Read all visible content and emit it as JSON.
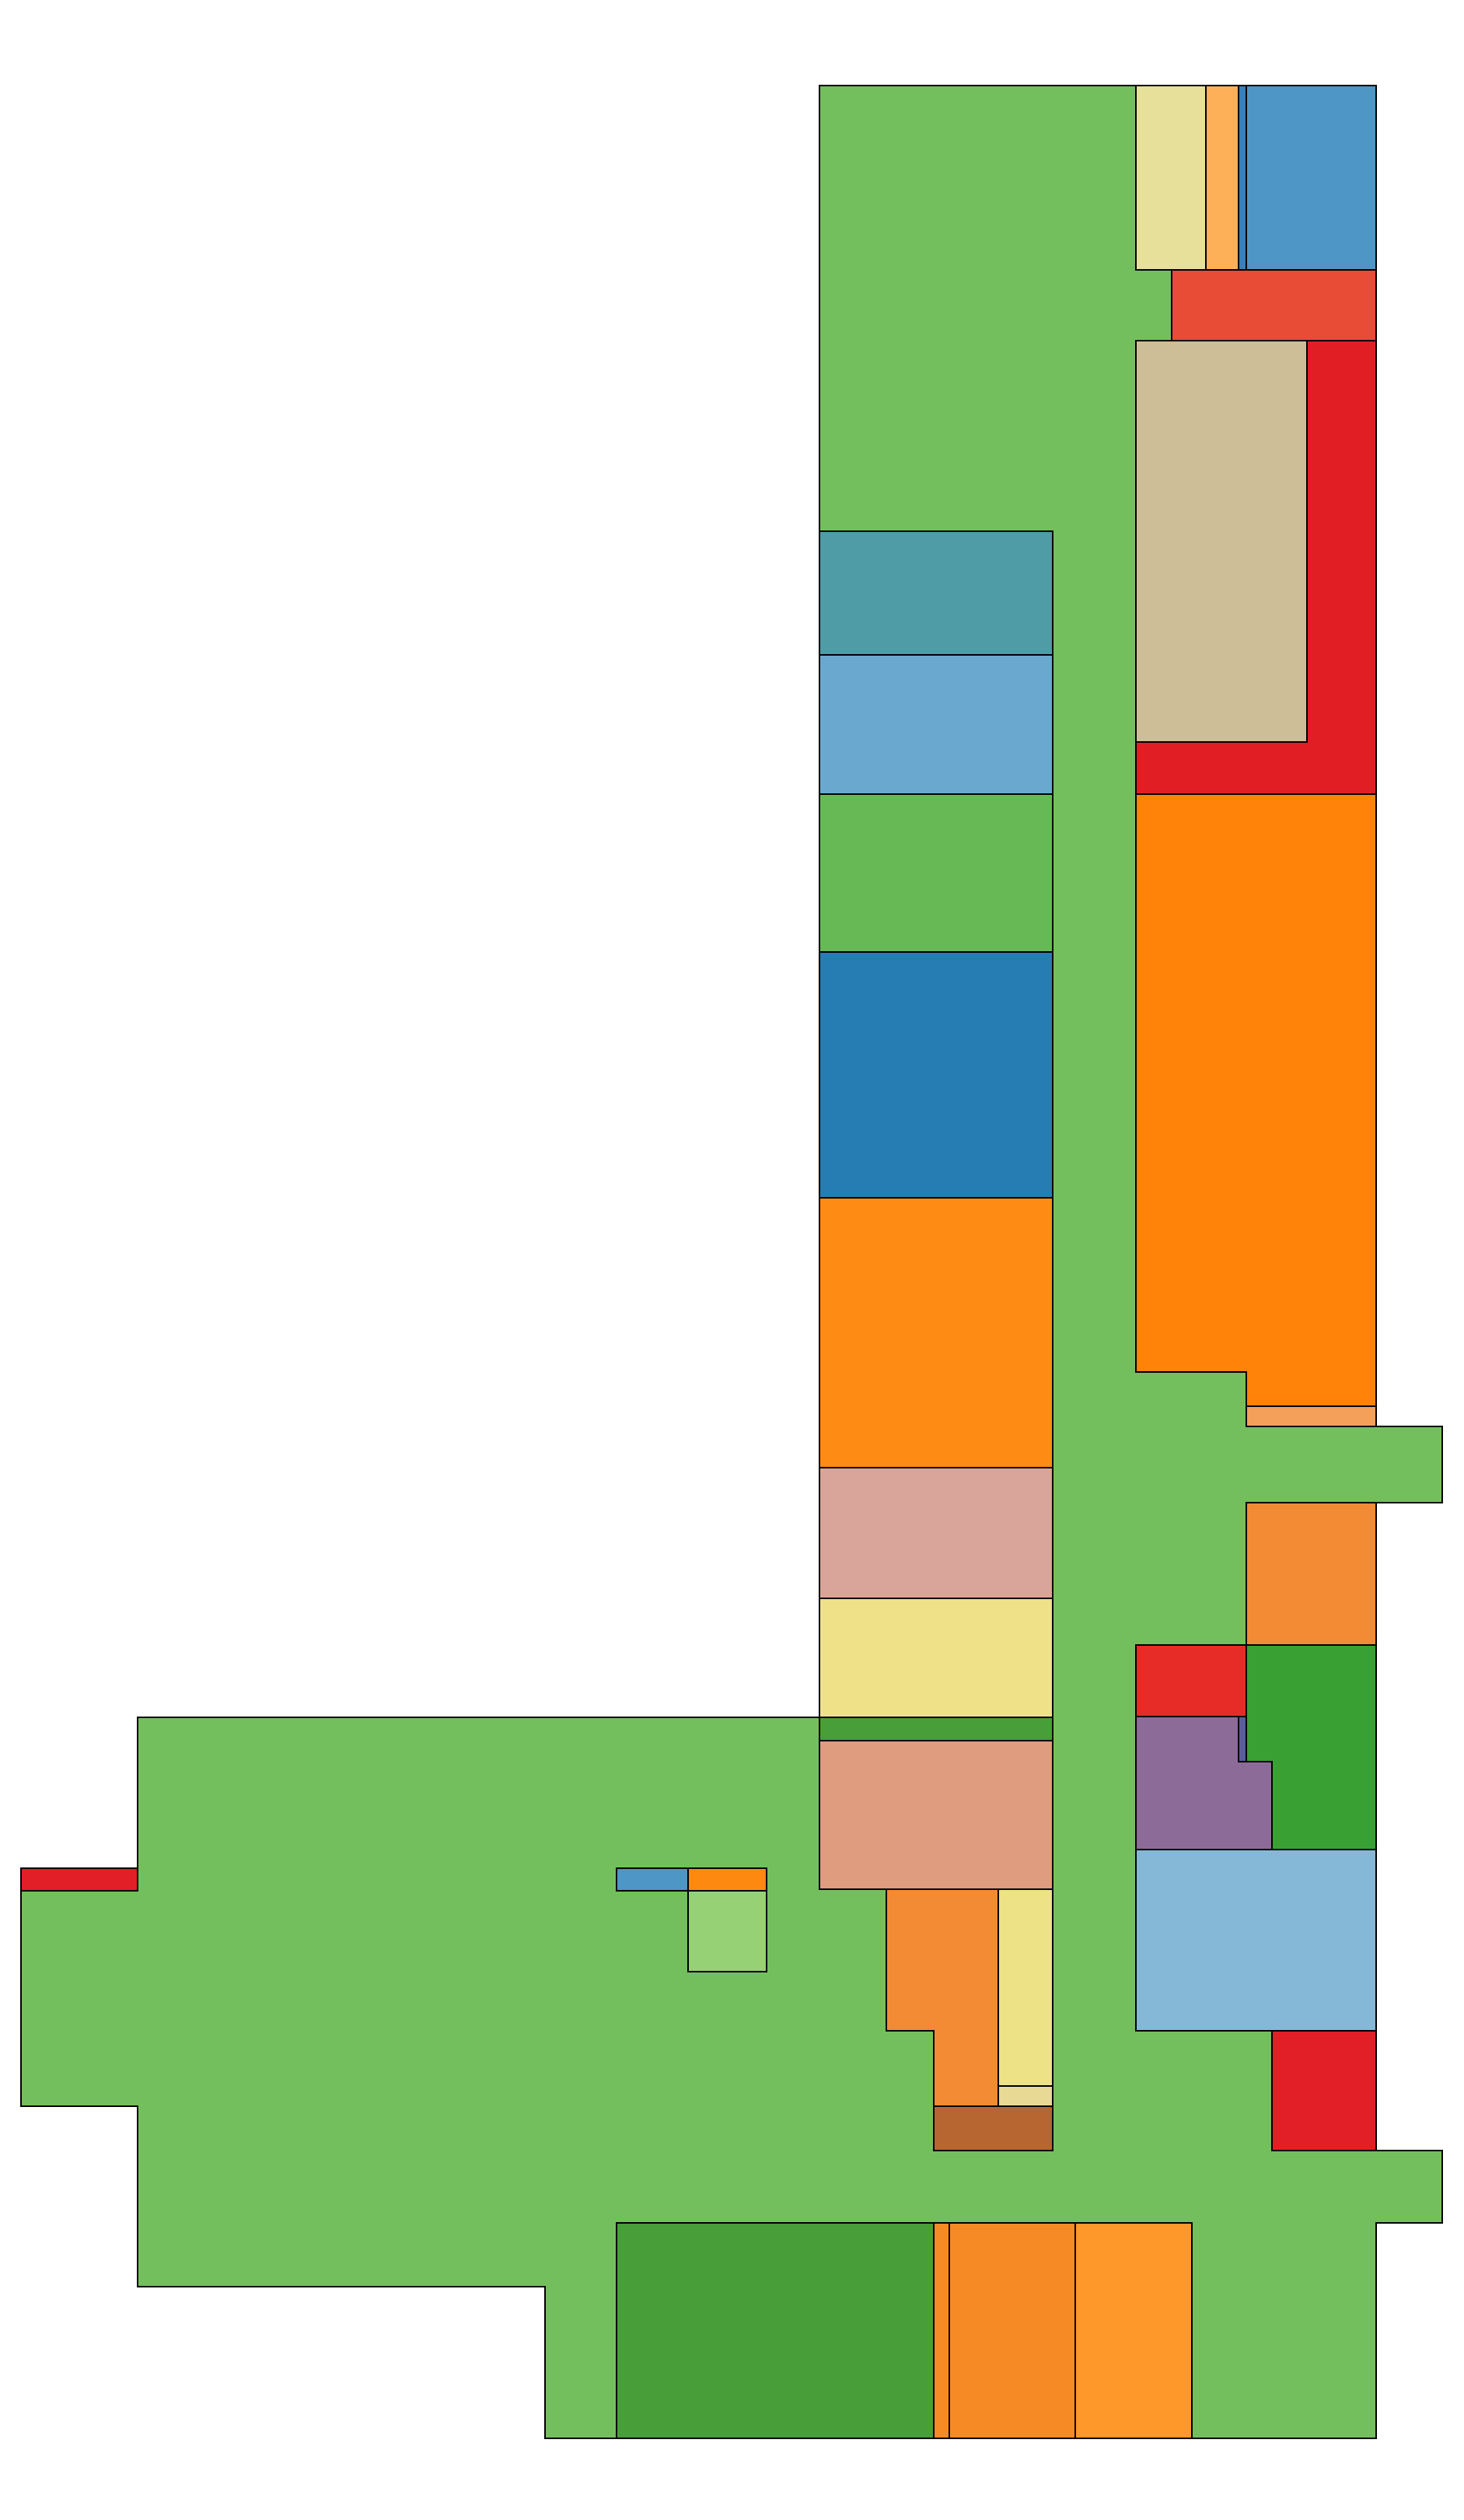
{
  "colors": {
    "corridor": "#74bf5d",
    "outline": "#000000",
    "background": "#ffffff"
  },
  "regions": [
    {
      "name": "corridor",
      "color": "#74bf5d"
    },
    {
      "name": "room-r1",
      "color": "#e6e09a"
    },
    {
      "name": "room-r2",
      "color": "#fdb058"
    },
    {
      "name": "room-r3",
      "color": "#3a7fb8"
    },
    {
      "name": "room-r4",
      "color": "#4e96c6"
    },
    {
      "name": "room-r5",
      "color": "#e84b36"
    },
    {
      "name": "room-r6",
      "color": "#e21e25"
    },
    {
      "name": "room-r7",
      "color": "#cdbe97"
    },
    {
      "name": "room-r8",
      "color": "#fe8308"
    },
    {
      "name": "room-r9",
      "color": "#f4a05a"
    },
    {
      "name": "room-r10",
      "color": "#4f9ba6"
    },
    {
      "name": "room-r11",
      "color": "#6ba8cf"
    },
    {
      "name": "room-r12",
      "color": "#66b955"
    },
    {
      "name": "room-r13",
      "color": "#267db3"
    },
    {
      "name": "room-r14",
      "color": "#fe8c14"
    },
    {
      "name": "room-r15",
      "color": "#d9a49a"
    },
    {
      "name": "room-r16",
      "color": "#efe187"
    },
    {
      "name": "room-r17",
      "color": "#489e38"
    },
    {
      "name": "room-r18",
      "color": "#e09c7e"
    },
    {
      "name": "room-r19",
      "color": "#f38b34"
    },
    {
      "name": "room-r20",
      "color": "#e72c28"
    },
    {
      "name": "room-r21",
      "color": "#39a034"
    },
    {
      "name": "room-r22",
      "color": "#8d6b99"
    },
    {
      "name": "room-r23",
      "color": "#5a5e9c"
    },
    {
      "name": "room-r24",
      "color": "#84b8d6"
    },
    {
      "name": "room-r25",
      "color": "#e21f27"
    },
    {
      "name": "room-r26",
      "color": "#e21f27"
    },
    {
      "name": "room-r27",
      "color": "#4e96c6"
    },
    {
      "name": "room-r28",
      "color": "#fe8910"
    },
    {
      "name": "room-r29",
      "color": "#97d175"
    },
    {
      "name": "room-r30",
      "color": "#f38b34"
    },
    {
      "name": "room-r31",
      "color": "#eee287"
    },
    {
      "name": "room-r32",
      "color": "#e8da94"
    },
    {
      "name": "room-r33",
      "color": "#b76632"
    },
    {
      "name": "room-r34",
      "color": "#489e38"
    },
    {
      "name": "room-r35",
      "color": "#f58b24"
    },
    {
      "name": "room-r36",
      "color": "#f68a25"
    },
    {
      "name": "room-r37",
      "color": "#ff982a"
    }
  ]
}
